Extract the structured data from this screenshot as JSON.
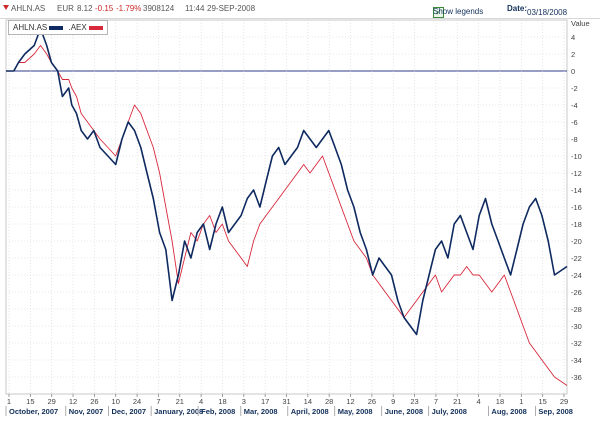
{
  "header": {
    "symbol": "AHLN.AS",
    "currency": "EUR",
    "price": "8.12",
    "change": "-0.15",
    "change_pct": "-1.79%",
    "volume": "3908124",
    "time": "11:44",
    "date": "29-SEP-2008",
    "show_legends_label": "Show legends",
    "date_label": "Date:",
    "date_value": "03/18/2008"
  },
  "colors": {
    "series1": "#0f2a60",
    "series2": "#d8283c",
    "zero_line": "#2e3e8c",
    "grid": "#d3d3d3"
  },
  "chart_data": {
    "type": "line",
    "ylabel": "Value",
    "ylim": [
      -38,
      6
    ],
    "y_ticks": [
      "4",
      "2",
      "0",
      "-2",
      "-4",
      "-6",
      "-8",
      "-10",
      "-12",
      "-14",
      "-16",
      "-18",
      "-20",
      "-22",
      "-24",
      "-26",
      "-28",
      "-30",
      "-32",
      "-34",
      "-36"
    ],
    "x_day_ticks": [
      "1",
      "15",
      "29",
      "12",
      "26",
      "10",
      "24",
      "7",
      "21",
      "4",
      "18",
      "3",
      "17",
      "31",
      "14",
      "28",
      "12",
      "26",
      "9",
      "23",
      "7",
      "21",
      "4",
      "18",
      "1",
      "15",
      "29"
    ],
    "x_month_labels": [
      "October, 2007",
      "Nov, 2007",
      "Dec, 2007",
      "January, 2008",
      "Feb, 2008",
      "Mar, 2008",
      "April, 2008",
      "May, 2008",
      "June, 2008",
      "July, 2008",
      "Aug, 2008",
      "Sep, 2008"
    ],
    "series": [
      {
        "name": "AHLN.AS",
        "x": [
          0,
          5,
          8,
          12,
          18,
          22,
          26,
          29,
          33,
          36,
          40,
          42,
          45,
          48,
          52,
          56,
          60,
          65,
          70,
          74,
          78,
          82,
          86,
          90,
          94,
          98,
          102,
          106,
          110,
          114,
          118,
          122,
          126,
          130,
          134,
          138,
          142,
          146,
          150,
          154,
          158,
          162,
          166,
          170,
          174,
          178,
          182,
          186,
          190,
          194,
          198,
          202,
          206,
          210,
          214,
          218,
          222,
          226,
          230,
          234,
          238,
          242,
          246,
          250,
          254,
          258,
          262,
          266,
          270,
          274,
          278,
          282,
          286,
          290,
          294,
          298,
          302,
          306,
          310,
          314,
          318,
          322,
          326,
          330,
          334,
          338,
          342,
          346,
          350,
          358
        ],
        "values": [
          0,
          0,
          1,
          2,
          3,
          5,
          3,
          1,
          0,
          -3,
          -2,
          -4,
          -5,
          -7,
          -8,
          -7,
          -9,
          -10,
          -11,
          -8,
          -6,
          -7,
          -9,
          -12,
          -15,
          -19,
          -21,
          -27,
          -24,
          -20,
          -22,
          -19,
          -18,
          -21,
          -18,
          -16,
          -19,
          -18,
          -17,
          -15,
          -14,
          -16,
          -13,
          -10,
          -9,
          -11,
          -10,
          -9,
          -7,
          -8,
          -9,
          -8,
          -7,
          -9,
          -11,
          -14,
          -16,
          -19,
          -21,
          -24,
          -22,
          -23,
          -24,
          -27,
          -29,
          -30,
          -31,
          -27,
          -24,
          -21,
          -20,
          -22,
          -18,
          -17,
          -19,
          -21,
          -17,
          -15,
          -18,
          -20,
          -22,
          -24,
          -21,
          -18,
          -16,
          -15,
          -17,
          -20,
          -24,
          -23
        ]
      },
      {
        "name": ".AEX",
        "x": [
          0,
          5,
          8,
          12,
          18,
          22,
          26,
          29,
          33,
          36,
          40,
          42,
          45,
          48,
          52,
          56,
          60,
          65,
          70,
          74,
          78,
          82,
          86,
          90,
          94,
          98,
          102,
          106,
          110,
          114,
          118,
          122,
          126,
          130,
          134,
          138,
          142,
          146,
          150,
          154,
          158,
          162,
          166,
          170,
          174,
          178,
          182,
          186,
          190,
          194,
          198,
          202,
          206,
          210,
          214,
          218,
          222,
          226,
          230,
          234,
          238,
          242,
          246,
          250,
          254,
          258,
          262,
          266,
          270,
          274,
          278,
          282,
          286,
          290,
          294,
          298,
          302,
          306,
          310,
          314,
          318,
          322,
          326,
          330,
          334,
          338,
          342,
          346,
          350,
          358
        ],
        "values": [
          0,
          0,
          1,
          1,
          2,
          3,
          2,
          1,
          0,
          -1,
          -1,
          -2,
          -3,
          -5,
          -6,
          -7,
          -8,
          -9,
          -10,
          -8,
          -6,
          -4,
          -5,
          -7,
          -9,
          -12,
          -16,
          -20,
          -25,
          -22,
          -19,
          -20,
          -18,
          -17,
          -19,
          -18,
          -20,
          -21,
          -22,
          -23,
          -20,
          -18,
          -17,
          -16,
          -15,
          -14,
          -13,
          -12,
          -11,
          -12,
          -11,
          -10,
          -12,
          -14,
          -16,
          -18,
          -20,
          -21,
          -22,
          -24,
          -25,
          -26,
          -27,
          -28,
          -29,
          -28,
          -27,
          -26,
          -25,
          -24,
          -26,
          -25,
          -24,
          -24,
          -23,
          -24,
          -24,
          -25,
          -26,
          -25,
          -24,
          -26,
          -28,
          -30,
          -32,
          -33,
          -34,
          -35,
          -36,
          -37
        ]
      }
    ]
  }
}
